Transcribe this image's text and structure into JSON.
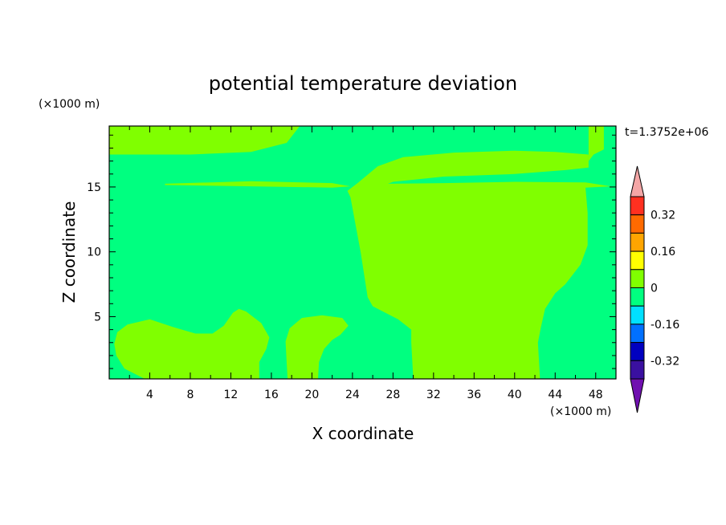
{
  "chart_data": {
    "type": "heatmap",
    "title": "potential temperature deviation",
    "xlabel": "X coordinate",
    "ylabel": "Z coordinate",
    "x_unit": "(×1000 m)",
    "y_unit": "(×1000 m)",
    "time_label": "t=1.3752e+06",
    "xlim": [
      0,
      50
    ],
    "ylim": [
      0.2,
      19.7
    ],
    "x_ticks": [
      "4",
      "8",
      "12",
      "16",
      "20",
      "24",
      "28",
      "32",
      "36",
      "40",
      "44",
      "48"
    ],
    "y_ticks": [
      "5",
      "10",
      "15"
    ],
    "background_level": "-0.08 to 0",
    "background_color": "#00ff80",
    "region_color": "#80ff00",
    "regions": [
      {
        "name": "upper-layer",
        "level": "0 to 0.08",
        "points": [
          [
            0,
            19.7
          ],
          [
            18.8,
            19.7
          ],
          [
            17.5,
            18.4
          ],
          [
            14,
            17.7
          ],
          [
            8,
            17.5
          ],
          [
            0,
            17.5
          ]
        ]
      },
      {
        "name": "thin-filament-west",
        "level": "0 to 0.08",
        "points": [
          [
            5.5,
            15.25
          ],
          [
            14,
            15.45
          ],
          [
            22,
            15.3
          ],
          [
            23.8,
            15.05
          ],
          [
            22,
            14.95
          ],
          [
            14,
            15.05
          ],
          [
            5.5,
            15.15
          ]
        ]
      },
      {
        "name": "central-plume",
        "level": "0 to 0.08",
        "points": [
          [
            23.5,
            14.7
          ],
          [
            24.5,
            15.3
          ],
          [
            26.5,
            16.6
          ],
          [
            29,
            17.3
          ],
          [
            34,
            17.65
          ],
          [
            40,
            17.8
          ],
          [
            44,
            17.7
          ],
          [
            47.3,
            17.5
          ],
          [
            47.3,
            16.5
          ],
          [
            45,
            16.3
          ],
          [
            40,
            16
          ],
          [
            33,
            15.8
          ],
          [
            28,
            15.4
          ],
          [
            27.5,
            15.25
          ],
          [
            33,
            15.3
          ],
          [
            40,
            15.4
          ],
          [
            47,
            15.35
          ],
          [
            49.5,
            15.05
          ],
          [
            47,
            14.95
          ],
          [
            47.2,
            13
          ],
          [
            47.2,
            10.5
          ],
          [
            46.5,
            9
          ],
          [
            45,
            7.5
          ],
          [
            44,
            6.8
          ],
          [
            43,
            5.6
          ],
          [
            42.6,
            4.2
          ],
          [
            42.3,
            3
          ],
          [
            42.5,
            0.2
          ],
          [
            30,
            0.2
          ],
          [
            29.8,
            3
          ],
          [
            29.8,
            4
          ],
          [
            28.5,
            4.8
          ],
          [
            26,
            5.8
          ],
          [
            25.5,
            6.5
          ],
          [
            24.8,
            10
          ],
          [
            23.8,
            14.2
          ]
        ]
      },
      {
        "name": "northeast-corner",
        "level": "0 to 0.08",
        "points": [
          [
            47.3,
            19.7
          ],
          [
            48.8,
            19.7
          ],
          [
            48.8,
            17.9
          ],
          [
            47.8,
            17.5
          ],
          [
            47.3,
            17
          ]
        ]
      },
      {
        "name": "lower-west-blob",
        "level": "0 to 0.08",
        "points": [
          [
            0.5,
            2.9
          ],
          [
            0.8,
            3.8
          ],
          [
            1.8,
            4.4
          ],
          [
            4,
            4.8
          ],
          [
            6.3,
            4.2
          ],
          [
            8.5,
            3.7
          ],
          [
            10.2,
            3.7
          ],
          [
            11.3,
            4.3
          ],
          [
            12.2,
            5.3
          ],
          [
            12.8,
            5.6
          ],
          [
            13.5,
            5.4
          ],
          [
            15,
            4.5
          ],
          [
            15.8,
            3.4
          ],
          [
            15.5,
            2.5
          ],
          [
            14.8,
            1.5
          ],
          [
            14.8,
            0.2
          ],
          [
            3.5,
            0.2
          ],
          [
            1.5,
            1
          ],
          [
            0.7,
            2
          ]
        ]
      },
      {
        "name": "lower-mid-blob",
        "level": "0 to 0.08",
        "points": [
          [
            17.4,
            3.1
          ],
          [
            17.8,
            4.1
          ],
          [
            19,
            4.9
          ],
          [
            21,
            5.1
          ],
          [
            23,
            4.9
          ],
          [
            23.6,
            4.3
          ],
          [
            22.8,
            3.6
          ],
          [
            22,
            3.2
          ],
          [
            21.2,
            2.5
          ],
          [
            20.7,
            1.5
          ],
          [
            20.6,
            0.2
          ],
          [
            17.6,
            0.2
          ],
          [
            17.5,
            1.5
          ]
        ]
      }
    ],
    "legend": {
      "labels": [
        "0.32",
        "0.16",
        "0",
        "-0.16",
        "-0.32"
      ],
      "bins": [
        {
          "range": "> 0.4",
          "color": "#f4a6a6"
        },
        {
          "range": "0.32 to 0.4",
          "color": "#ff3020"
        },
        {
          "range": "0.24 to 0.32",
          "color": "#ff6a00"
        },
        {
          "range": "0.16 to 0.24",
          "color": "#ffa500"
        },
        {
          "range": "0.08 to 0.16",
          "color": "#ffff00"
        },
        {
          "range": "0 to 0.08",
          "color": "#80ff00"
        },
        {
          "range": "-0.08 to 0",
          "color": "#00ff80"
        },
        {
          "range": "-0.16 to -0.08",
          "color": "#00e0ff"
        },
        {
          "range": "-0.24 to -0.16",
          "color": "#0070ff"
        },
        {
          "range": "-0.32 to -0.24",
          "color": "#0000c0"
        },
        {
          "range": "-0.4 to -0.32",
          "color": "#3a10a0"
        },
        {
          "range": "< -0.4",
          "color": "#7010b0"
        }
      ]
    }
  }
}
